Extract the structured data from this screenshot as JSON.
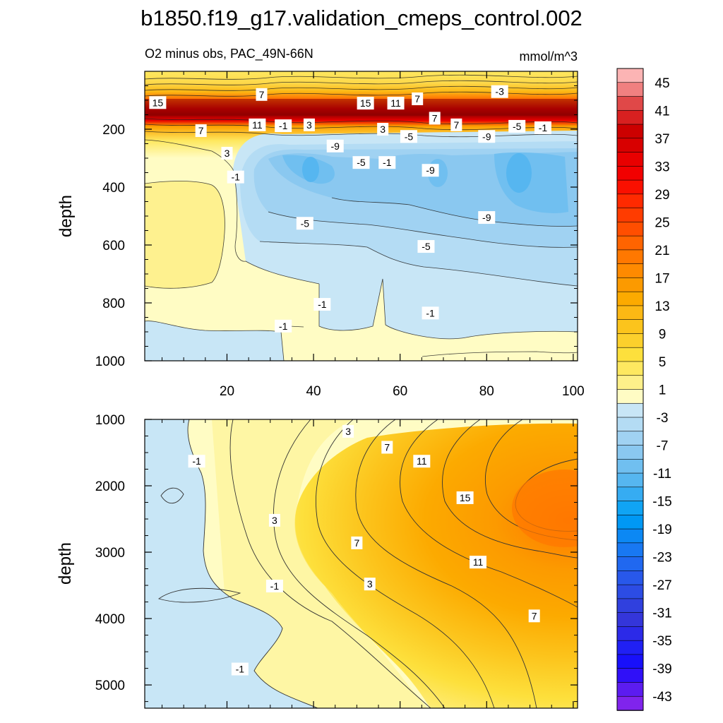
{
  "chart_data": {
    "type": "contour",
    "title": "b1850.f19_g17.validation_cmeps_control.002",
    "subtitle_left": "O2 minus obs, PAC_49N-66N",
    "subtitle_right": "mmol/m^3",
    "ylabel": "depth",
    "x_ticks": [
      "20",
      "40",
      "60",
      "80",
      "100"
    ],
    "x_range": [
      1,
      101
    ],
    "panels": [
      {
        "name": "upper",
        "ylim": [
          0,
          1000
        ],
        "y_ticks": [
          "200",
          "400",
          "600",
          "800",
          "1000"
        ],
        "contour_labels": [
          {
            "text": "15",
            "x": 4,
            "y": 108
          },
          {
            "text": "7",
            "x": 28,
            "y": 80
          },
          {
            "text": "7",
            "x": 14,
            "y": 205
          },
          {
            "text": "3",
            "x": 20,
            "y": 283
          },
          {
            "text": "-1",
            "x": 22,
            "y": 365
          },
          {
            "text": "11",
            "x": 27,
            "y": 185
          },
          {
            "text": "-1",
            "x": 33,
            "y": 188
          },
          {
            "text": "3",
            "x": 39,
            "y": 185
          },
          {
            "text": "-9",
            "x": 45,
            "y": 258
          },
          {
            "text": "15",
            "x": 52,
            "y": 110
          },
          {
            "text": "11",
            "x": 59,
            "y": 110
          },
          {
            "text": "7",
            "x": 64,
            "y": 95
          },
          {
            "text": "3",
            "x": 56,
            "y": 200
          },
          {
            "text": "-5",
            "x": 51,
            "y": 315
          },
          {
            "text": "-1",
            "x": 57,
            "y": 315
          },
          {
            "text": "-5",
            "x": 62,
            "y": 225
          },
          {
            "text": "-9",
            "x": 67,
            "y": 342
          },
          {
            "text": "7",
            "x": 68,
            "y": 162
          },
          {
            "text": "7",
            "x": 73,
            "y": 185
          },
          {
            "text": "-3",
            "x": 83,
            "y": 70
          },
          {
            "text": "-5",
            "x": 87,
            "y": 190
          },
          {
            "text": "-9",
            "x": 80,
            "y": 225
          },
          {
            "text": "-1",
            "x": 93,
            "y": 195
          },
          {
            "text": "-5",
            "x": 38,
            "y": 525
          },
          {
            "text": "-9",
            "x": 80,
            "y": 505
          },
          {
            "text": "-5",
            "x": 66,
            "y": 605
          },
          {
            "text": "-1",
            "x": 42,
            "y": 805
          },
          {
            "text": "-1",
            "x": 67,
            "y": 835
          },
          {
            "text": "-1",
            "x": 33,
            "y": 880
          }
        ]
      },
      {
        "name": "lower",
        "ylim": [
          1000,
          5350
        ],
        "y_ticks": [
          "1000",
          "2000",
          "3000",
          "4000",
          "5000"
        ],
        "contour_labels": [
          {
            "text": "3",
            "x": 48,
            "y": 1180
          },
          {
            "text": "7",
            "x": 57,
            "y": 1420
          },
          {
            "text": "11",
            "x": 65,
            "y": 1630
          },
          {
            "text": "-1",
            "x": 13,
            "y": 1630
          },
          {
            "text": "15",
            "x": 75,
            "y": 2180
          },
          {
            "text": "3",
            "x": 31,
            "y": 2520
          },
          {
            "text": "7",
            "x": 50,
            "y": 2860
          },
          {
            "text": "11",
            "x": 78,
            "y": 3150
          },
          {
            "text": "3",
            "x": 53,
            "y": 3480
          },
          {
            "text": "-1",
            "x": 31,
            "y": 3510
          },
          {
            "text": "7",
            "x": 91,
            "y": 3960
          },
          {
            "text": "-1",
            "x": 23,
            "y": 4760
          }
        ]
      }
    ],
    "colorbar": {
      "levels": [
        47,
        45,
        43,
        41,
        39,
        37,
        35,
        33,
        31,
        29,
        27,
        25,
        23,
        21,
        19,
        17,
        15,
        13,
        11,
        9,
        7,
        5,
        3,
        1,
        -1,
        -3,
        -5,
        -7,
        -9,
        -11,
        -13,
        -15,
        -17,
        -19,
        -21,
        -23,
        -25,
        -27,
        -29,
        -31,
        -33,
        -35,
        -37,
        -39,
        -41,
        -43,
        -45
      ],
      "labels": [
        "45",
        "41",
        "37",
        "33",
        "29",
        "25",
        "21",
        "17",
        "13",
        "9",
        "5",
        "1",
        "-3",
        "-7",
        "-11",
        "-15",
        "-19",
        "-23",
        "-27",
        "-31",
        "-35",
        "-39",
        "-43"
      ],
      "colors": [
        "#fcb4b4",
        "#f08080",
        "#e04848",
        "#d82020",
        "#cc0000",
        "#d80000",
        "#e80000",
        "#f20000",
        "#fa1000",
        "#ff2a00",
        "#ff3c00",
        "#ff4e00",
        "#ff6400",
        "#ff7800",
        "#fe8a00",
        "#fc9a00",
        "#fcaa00",
        "#fcb814",
        "#fcc41c",
        "#fcd02c",
        "#fde03c",
        "#fee860",
        "#fef08a",
        "#fffcc4",
        "#c8e6f6",
        "#b4dcf4",
        "#a0d2f2",
        "#8ac8f0",
        "#70bff0",
        "#56b6f0",
        "#36acf2",
        "#10a4f4",
        "#0098f4",
        "#0c88f4",
        "#1878f2",
        "#2068f0",
        "#2858ea",
        "#2c4ce4",
        "#3040de",
        "#3436da",
        "#2c2ae8",
        "#2020f4",
        "#1810fa",
        "#3010f8",
        "#5c1cf0",
        "#8024ec"
      ]
    }
  }
}
